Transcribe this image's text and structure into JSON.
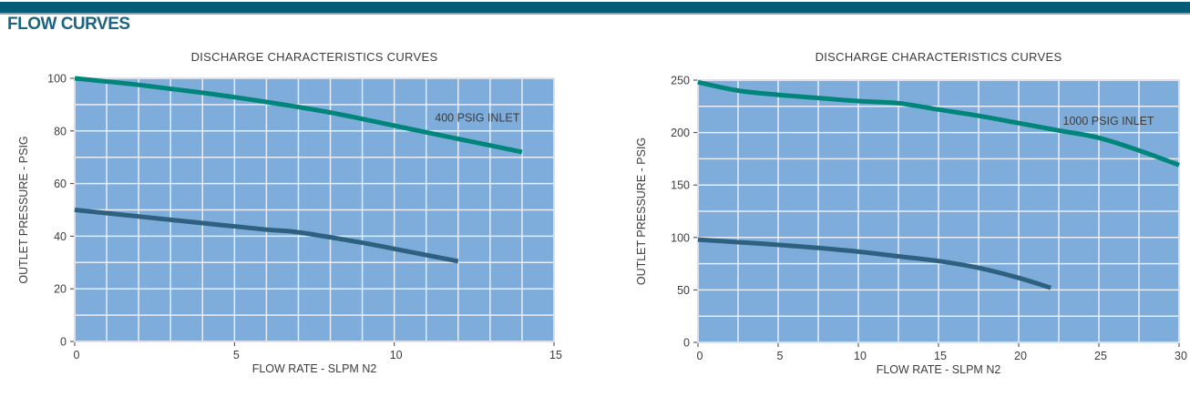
{
  "page": {
    "heading": "FLOW CURVES",
    "colors": {
      "top_bar": "#045C76",
      "top_bar_edge": "#7AA7BB",
      "heading": "#1D6480",
      "plot_bg": "#7EADDB",
      "grid": "#E9EDF7",
      "plot_border": "#D9DEF0",
      "text": "#3C3C3C",
      "teal_curve": "#00857B",
      "navy_curve": "#2E607F"
    }
  },
  "chart_data": [
    {
      "type": "line",
      "title": "DISCHARGE CHARACTERISTICS CURVES",
      "xlabel": "FLOW RATE - SLPM N2",
      "ylabel": "OUTLET PRESSURE - PSIG",
      "xlim": [
        0,
        15
      ],
      "ylim": [
        0,
        100
      ],
      "x_ticks": [
        0,
        5,
        10,
        15
      ],
      "y_ticks": [
        0,
        20,
        40,
        60,
        80,
        100
      ],
      "x_grid_step": 1,
      "y_grid_step": 10,
      "grid": true,
      "legend": "none",
      "annotation": {
        "text": "400 PSIG INLET",
        "x": 12.6,
        "y": 85
      },
      "series": [
        {
          "name": "400 psig inlet upper curve",
          "color": "#00857B",
          "points": [
            [
              0,
              100
            ],
            [
              2,
              97.5
            ],
            [
              4,
              94.5
            ],
            [
              6,
              91
            ],
            [
              8,
              87
            ],
            [
              10,
              82
            ],
            [
              12,
              77
            ],
            [
              14,
              72
            ]
          ]
        },
        {
          "name": "lower outlet curve",
          "color": "#2E607F",
          "points": [
            [
              0,
              50
            ],
            [
              2,
              47.5
            ],
            [
              4,
              45
            ],
            [
              6,
              42.5
            ],
            [
              7,
              41.5
            ],
            [
              9,
              37.5
            ],
            [
              10.5,
              34
            ],
            [
              12,
              30.5
            ]
          ]
        }
      ]
    },
    {
      "type": "line",
      "title": "DISCHARGE CHARACTERISTICS CURVES",
      "xlabel": "FLOW RATE - SLPM N2",
      "ylabel": "OUTLET PRESSURE - PSIG",
      "xlim": [
        0,
        30
      ],
      "ylim": [
        0,
        250
      ],
      "x_ticks": [
        0,
        5,
        10,
        15,
        20,
        25,
        30
      ],
      "y_ticks": [
        0,
        50,
        100,
        150,
        200,
        250
      ],
      "x_grid_step": 2.5,
      "y_grid_step": 25,
      "grid": true,
      "legend": "none",
      "annotation": {
        "text": "1000 PSIG INLET",
        "x": 25.6,
        "y": 211
      },
      "series": [
        {
          "name": "1000 psig inlet upper curve",
          "color": "#00857B",
          "points": [
            [
              0,
              248
            ],
            [
              2.5,
              240
            ],
            [
              5,
              236
            ],
            [
              7.5,
              233
            ],
            [
              10,
              230
            ],
            [
              12.5,
              228
            ],
            [
              15,
              222
            ],
            [
              17.5,
              216
            ],
            [
              20,
              209
            ],
            [
              22.5,
              202
            ],
            [
              25,
              195
            ],
            [
              27.5,
              183
            ],
            [
              30,
              169
            ]
          ]
        },
        {
          "name": "lower outlet curve",
          "color": "#2E607F",
          "points": [
            [
              0,
              98
            ],
            [
              2.5,
              95.5
            ],
            [
              5,
              93
            ],
            [
              7.5,
              90
            ],
            [
              10,
              86.5
            ],
            [
              12.5,
              82
            ],
            [
              15,
              77.5
            ],
            [
              17.5,
              71
            ],
            [
              20,
              61.5
            ],
            [
              22,
              52
            ]
          ]
        }
      ]
    }
  ]
}
